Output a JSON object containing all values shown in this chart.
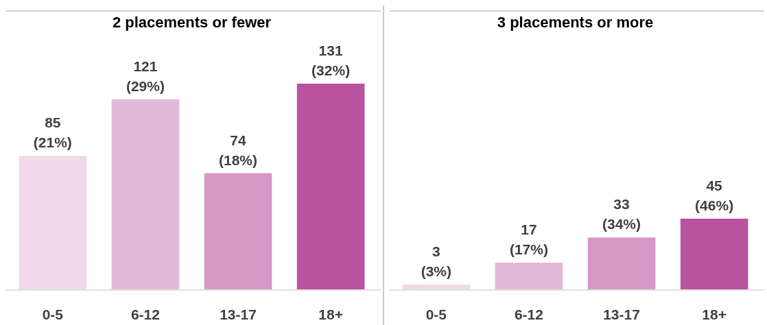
{
  "chart_data": [
    {
      "type": "bar",
      "title": "2 placements or fewer",
      "categories": [
        "0-5",
        "6-12",
        "13-17",
        "18+"
      ],
      "values": [
        85,
        121,
        74,
        131
      ],
      "colors": [
        "#f0d9ea",
        "#e3b9da",
        "#d598c7",
        "#b9529f"
      ],
      "value_labels": [
        "85 (21%)",
        "121 (29%)",
        "74 (18%)",
        "131 (32%)"
      ]
    },
    {
      "type": "bar",
      "title": "3 placements or more",
      "categories": [
        "0-5",
        "6-12",
        "13-17",
        "18+"
      ],
      "values": [
        3,
        17,
        33,
        45
      ],
      "colors": [
        "#f0d9ea",
        "#e3b9da",
        "#d598c7",
        "#b9529f"
      ],
      "value_labels": [
        "3 (3%)",
        "17 (17%)",
        "33 (34%)",
        "45 (46%)"
      ]
    }
  ]
}
